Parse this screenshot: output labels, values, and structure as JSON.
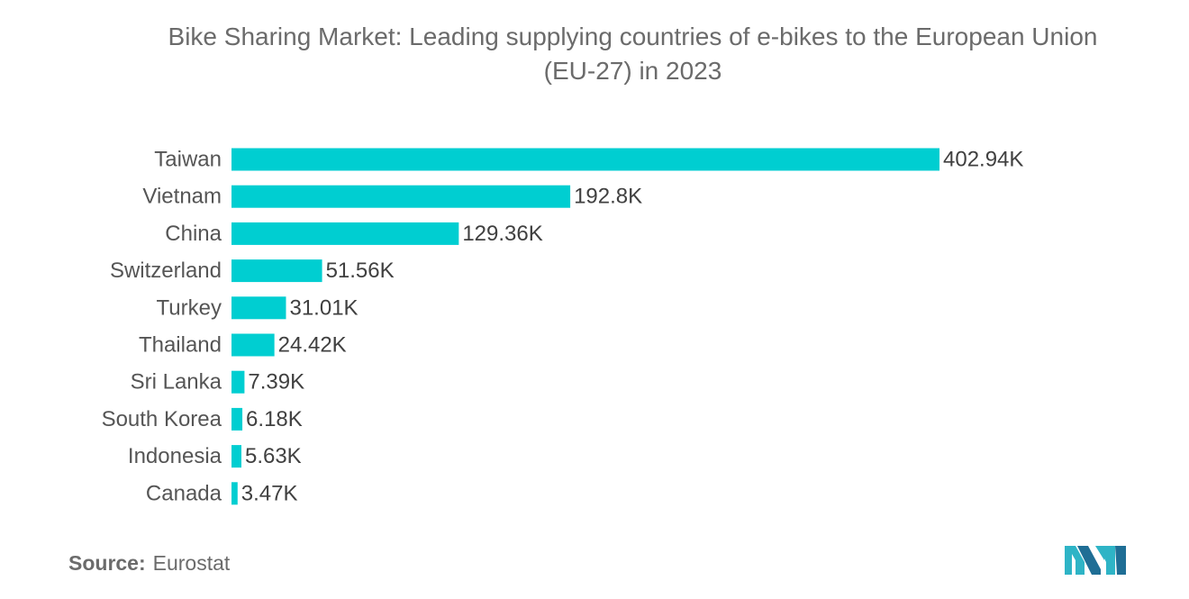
{
  "chart_data": {
    "type": "bar",
    "orientation": "horizontal",
    "title": "Bike Sharing Market: Leading supplying countries of e-bikes to the European Union (EU-27) in 2023",
    "title_lines": [
      "Bike Sharing Market: Leading supplying countries of e-bikes to the European Union",
      "(EU-27) in 2023"
    ],
    "categories": [
      "Taiwan",
      "Vietnam",
      "China",
      "Switzerland",
      "Turkey",
      "Thailand",
      "Sri Lanka",
      "South Korea",
      "Indonesia",
      "Canada"
    ],
    "values": [
      402.94,
      192.8,
      129.36,
      51.56,
      31.01,
      24.42,
      7.39,
      6.18,
      5.63,
      3.47
    ],
    "value_labels": [
      "402.94K",
      "192.8K",
      "129.36K",
      "51.56K",
      "31.01K",
      "24.42K",
      "7.39K",
      "6.18K",
      "5.63K",
      "3.47K"
    ],
    "unit": "K",
    "xlim": [
      0,
      402.94
    ],
    "grid": false,
    "legend": "none",
    "bar_color": "#00CED1"
  },
  "source": {
    "label": "Source:",
    "value": "Eurostat"
  },
  "logo": {
    "icon": "mordor-intelligence-logo-icon",
    "colors": [
      "#2EB4C6",
      "#1F6E95"
    ]
  }
}
